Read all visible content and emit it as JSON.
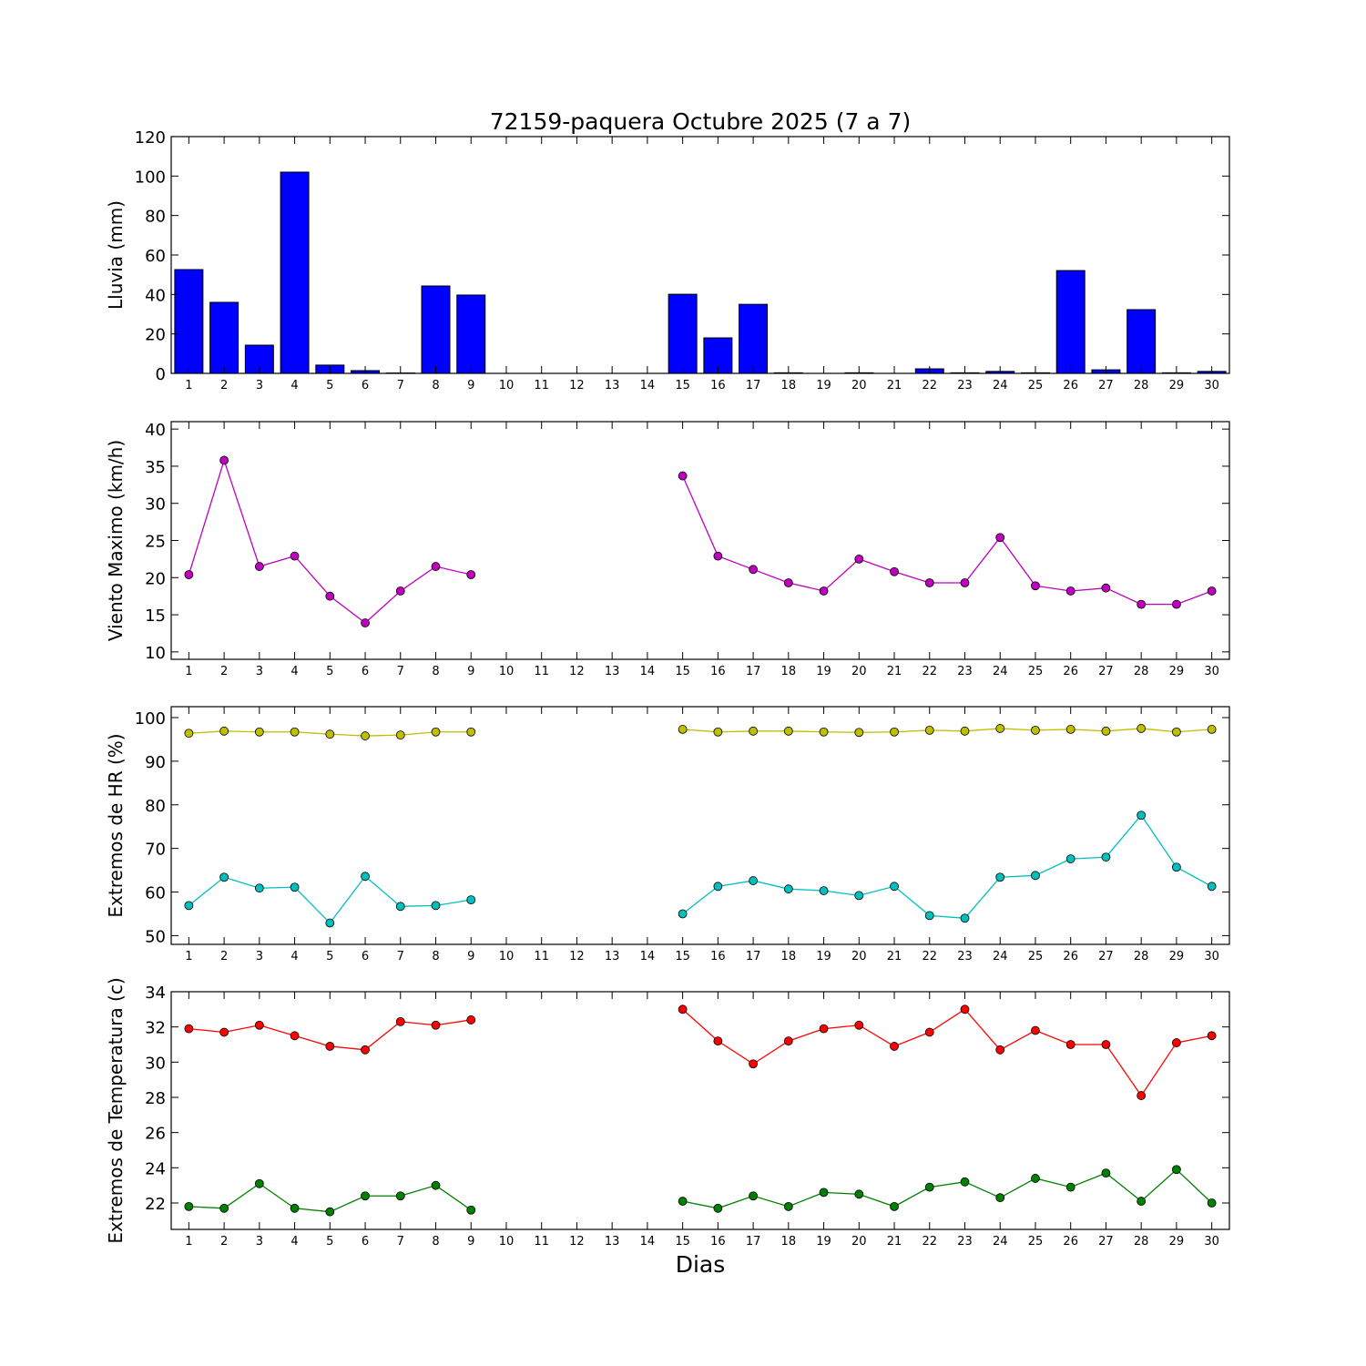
{
  "chart_data": {
    "title": "72159-paquera Octubre 2025  (7 a 7)",
    "xlabel": "Dias",
    "x_ticks": [
      1,
      2,
      3,
      4,
      5,
      6,
      7,
      8,
      9,
      10,
      11,
      12,
      13,
      14,
      15,
      16,
      17,
      18,
      19,
      20,
      21,
      22,
      23,
      24,
      25,
      26,
      27,
      28,
      29,
      30
    ],
    "xlim": [
      0.5,
      30.5
    ],
    "panels": [
      {
        "type": "bar",
        "ylabel": "Lluvia (mm)",
        "ylim": [
          0,
          120
        ],
        "yticks": [
          0,
          20,
          40,
          60,
          80,
          100,
          120
        ],
        "series": [
          {
            "name": "Lluvia",
            "color": "#0000ff",
            "values": [
              52.6,
              36,
              14.3,
              102,
              4.2,
              1.4,
              0.2,
              44.3,
              39.7,
              null,
              null,
              null,
              null,
              null,
              40.1,
              18,
              35,
              0.3,
              0,
              0.3,
              0,
              2.3,
              0.3,
              1,
              0.3,
              52.1,
              1.8,
              32.3,
              0.3,
              1
            ]
          }
        ]
      },
      {
        "type": "line",
        "ylabel": "Viento Maximo (km/h)",
        "ylim": [
          9,
          41
        ],
        "yticks": [
          10,
          15,
          20,
          25,
          30,
          35,
          40
        ],
        "series": [
          {
            "name": "Viento Maximo",
            "color": "#bf00bf",
            "values": [
              20.4,
              35.8,
              21.5,
              22.9,
              17.5,
              13.9,
              18.2,
              21.5,
              20.4,
              null,
              null,
              null,
              null,
              null,
              33.7,
              22.9,
              21.1,
              19.3,
              18.2,
              22.5,
              20.8,
              19.3,
              19.3,
              25.4,
              18.9,
              18.2,
              18.6,
              16.4,
              16.4,
              18.2
            ]
          }
        ]
      },
      {
        "type": "line",
        "ylabel": "Extremos de HR (%)",
        "ylim": [
          48,
          102.5
        ],
        "yticks": [
          50,
          60,
          70,
          80,
          90,
          100
        ],
        "series": [
          {
            "name": "HR maxima",
            "color": "#bfbf00",
            "values": [
              96.4,
              96.9,
              96.7,
              96.7,
              96.2,
              95.8,
              96,
              96.7,
              96.7,
              null,
              null,
              null,
              null,
              null,
              97.3,
              96.7,
              96.9,
              96.9,
              96.7,
              96.6,
              96.7,
              97.1,
              96.9,
              97.5,
              97.1,
              97.3,
              96.9,
              97.5,
              96.7,
              97.3
            ]
          },
          {
            "name": "HR minima",
            "color": "#00bfbf",
            "values": [
              56.9,
              63.4,
              60.9,
              61.1,
              52.9,
              63.6,
              56.7,
              56.9,
              58.2,
              null,
              null,
              null,
              null,
              null,
              55,
              61.3,
              62.6,
              60.7,
              60.3,
              59.2,
              61.3,
              54.6,
              54,
              63.4,
              63.8,
              67.6,
              68,
              77.6,
              65.7,
              61.3
            ]
          }
        ]
      },
      {
        "type": "line",
        "ylabel": "Extremos de Temperatura (c)",
        "ylim": [
          20.5,
          34
        ],
        "yticks": [
          22,
          24,
          26,
          28,
          30,
          32,
          34
        ],
        "series": [
          {
            "name": "Temperatura maxima",
            "color": "#ff0000",
            "values": [
              31.9,
              31.7,
              32.1,
              31.5,
              30.9,
              30.7,
              32.3,
              32.1,
              32.4,
              null,
              null,
              null,
              null,
              null,
              33,
              31.2,
              29.9,
              31.2,
              31.9,
              32.1,
              30.9,
              31.7,
              33,
              30.7,
              31.8,
              31,
              31,
              28.1,
              31.1,
              31.5
            ]
          },
          {
            "name": "Temperatura minima",
            "color": "#008000",
            "values": [
              21.8,
              21.7,
              23.1,
              21.7,
              21.5,
              22.4,
              22.4,
              23,
              21.6,
              null,
              null,
              null,
              null,
              null,
              22.1,
              21.7,
              22.4,
              21.8,
              22.6,
              22.5,
              21.8,
              22.9,
              23.2,
              22.3,
              23.4,
              22.9,
              23.7,
              22.1,
              23.9,
              22
            ]
          }
        ]
      }
    ]
  }
}
